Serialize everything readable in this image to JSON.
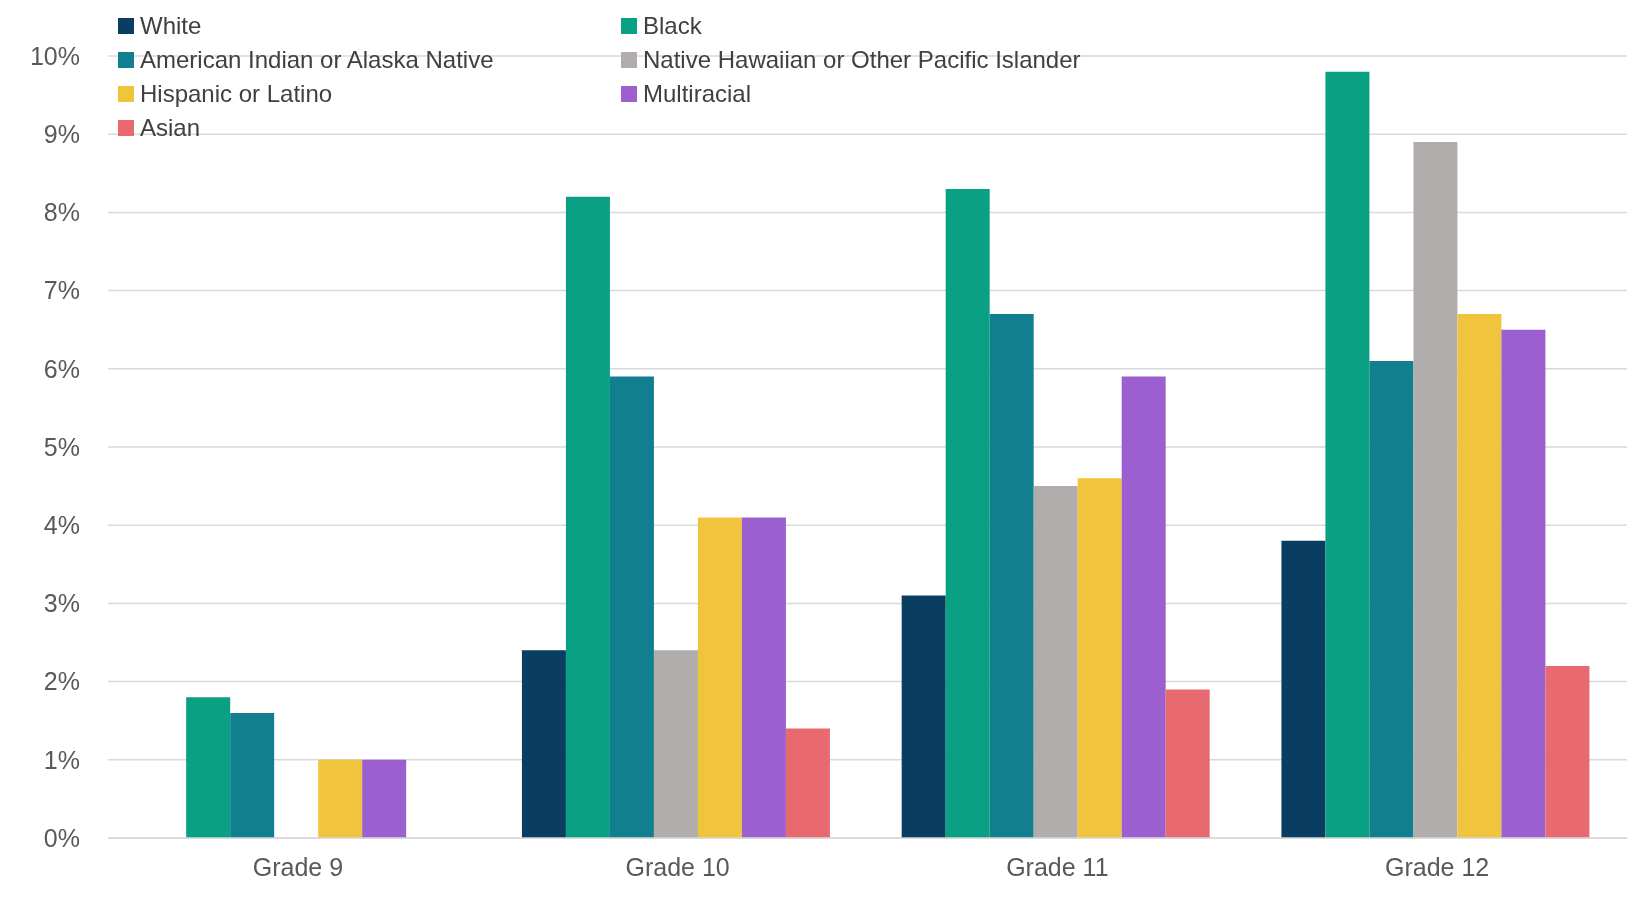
{
  "chart_data": {
    "type": "bar",
    "categories": [
      "Grade 9",
      "Grade 10",
      "Grade 11",
      "Grade 12"
    ],
    "series": [
      {
        "name": "White",
        "color": "#0a3d62",
        "values": [
          null,
          2.4,
          3.1,
          3.8
        ]
      },
      {
        "name": "Black",
        "color": "#0aa083",
        "values": [
          1.8,
          8.2,
          8.3,
          9.8
        ]
      },
      {
        "name": "American Indian or Alaska Native",
        "color": "#117f8f",
        "values": [
          1.6,
          5.9,
          6.7,
          6.1
        ]
      },
      {
        "name": "Native Hawaiian or Other Pacific Islander",
        "color": "#b0adac",
        "values": [
          null,
          2.4,
          4.5,
          8.9
        ]
      },
      {
        "name": "Hispanic or Latino",
        "color": "#f0c43c",
        "values": [
          1.0,
          4.1,
          4.6,
          6.7
        ]
      },
      {
        "name": "Multiracial",
        "color": "#9c5fd0",
        "values": [
          1.0,
          4.1,
          5.9,
          6.5
        ]
      },
      {
        "name": "Asian",
        "color": "#e86a70",
        "values": [
          null,
          1.4,
          1.9,
          2.2
        ]
      }
    ],
    "ylim": [
      0,
      10
    ],
    "yticks": [
      {
        "value": 0,
        "label": "0%"
      },
      {
        "value": 1,
        "label": "1%"
      },
      {
        "value": 2,
        "label": "2%"
      },
      {
        "value": 3,
        "label": "3%"
      },
      {
        "value": 4,
        "label": "4%"
      },
      {
        "value": 5,
        "label": "5%"
      },
      {
        "value": 6,
        "label": "6%"
      },
      {
        "value": 7,
        "label": "7%"
      },
      {
        "value": 8,
        "label": "8%"
      },
      {
        "value": 9,
        "label": "9%"
      },
      {
        "value": 10,
        "label": "10%"
      }
    ],
    "grid": "y",
    "legend": "top left"
  }
}
